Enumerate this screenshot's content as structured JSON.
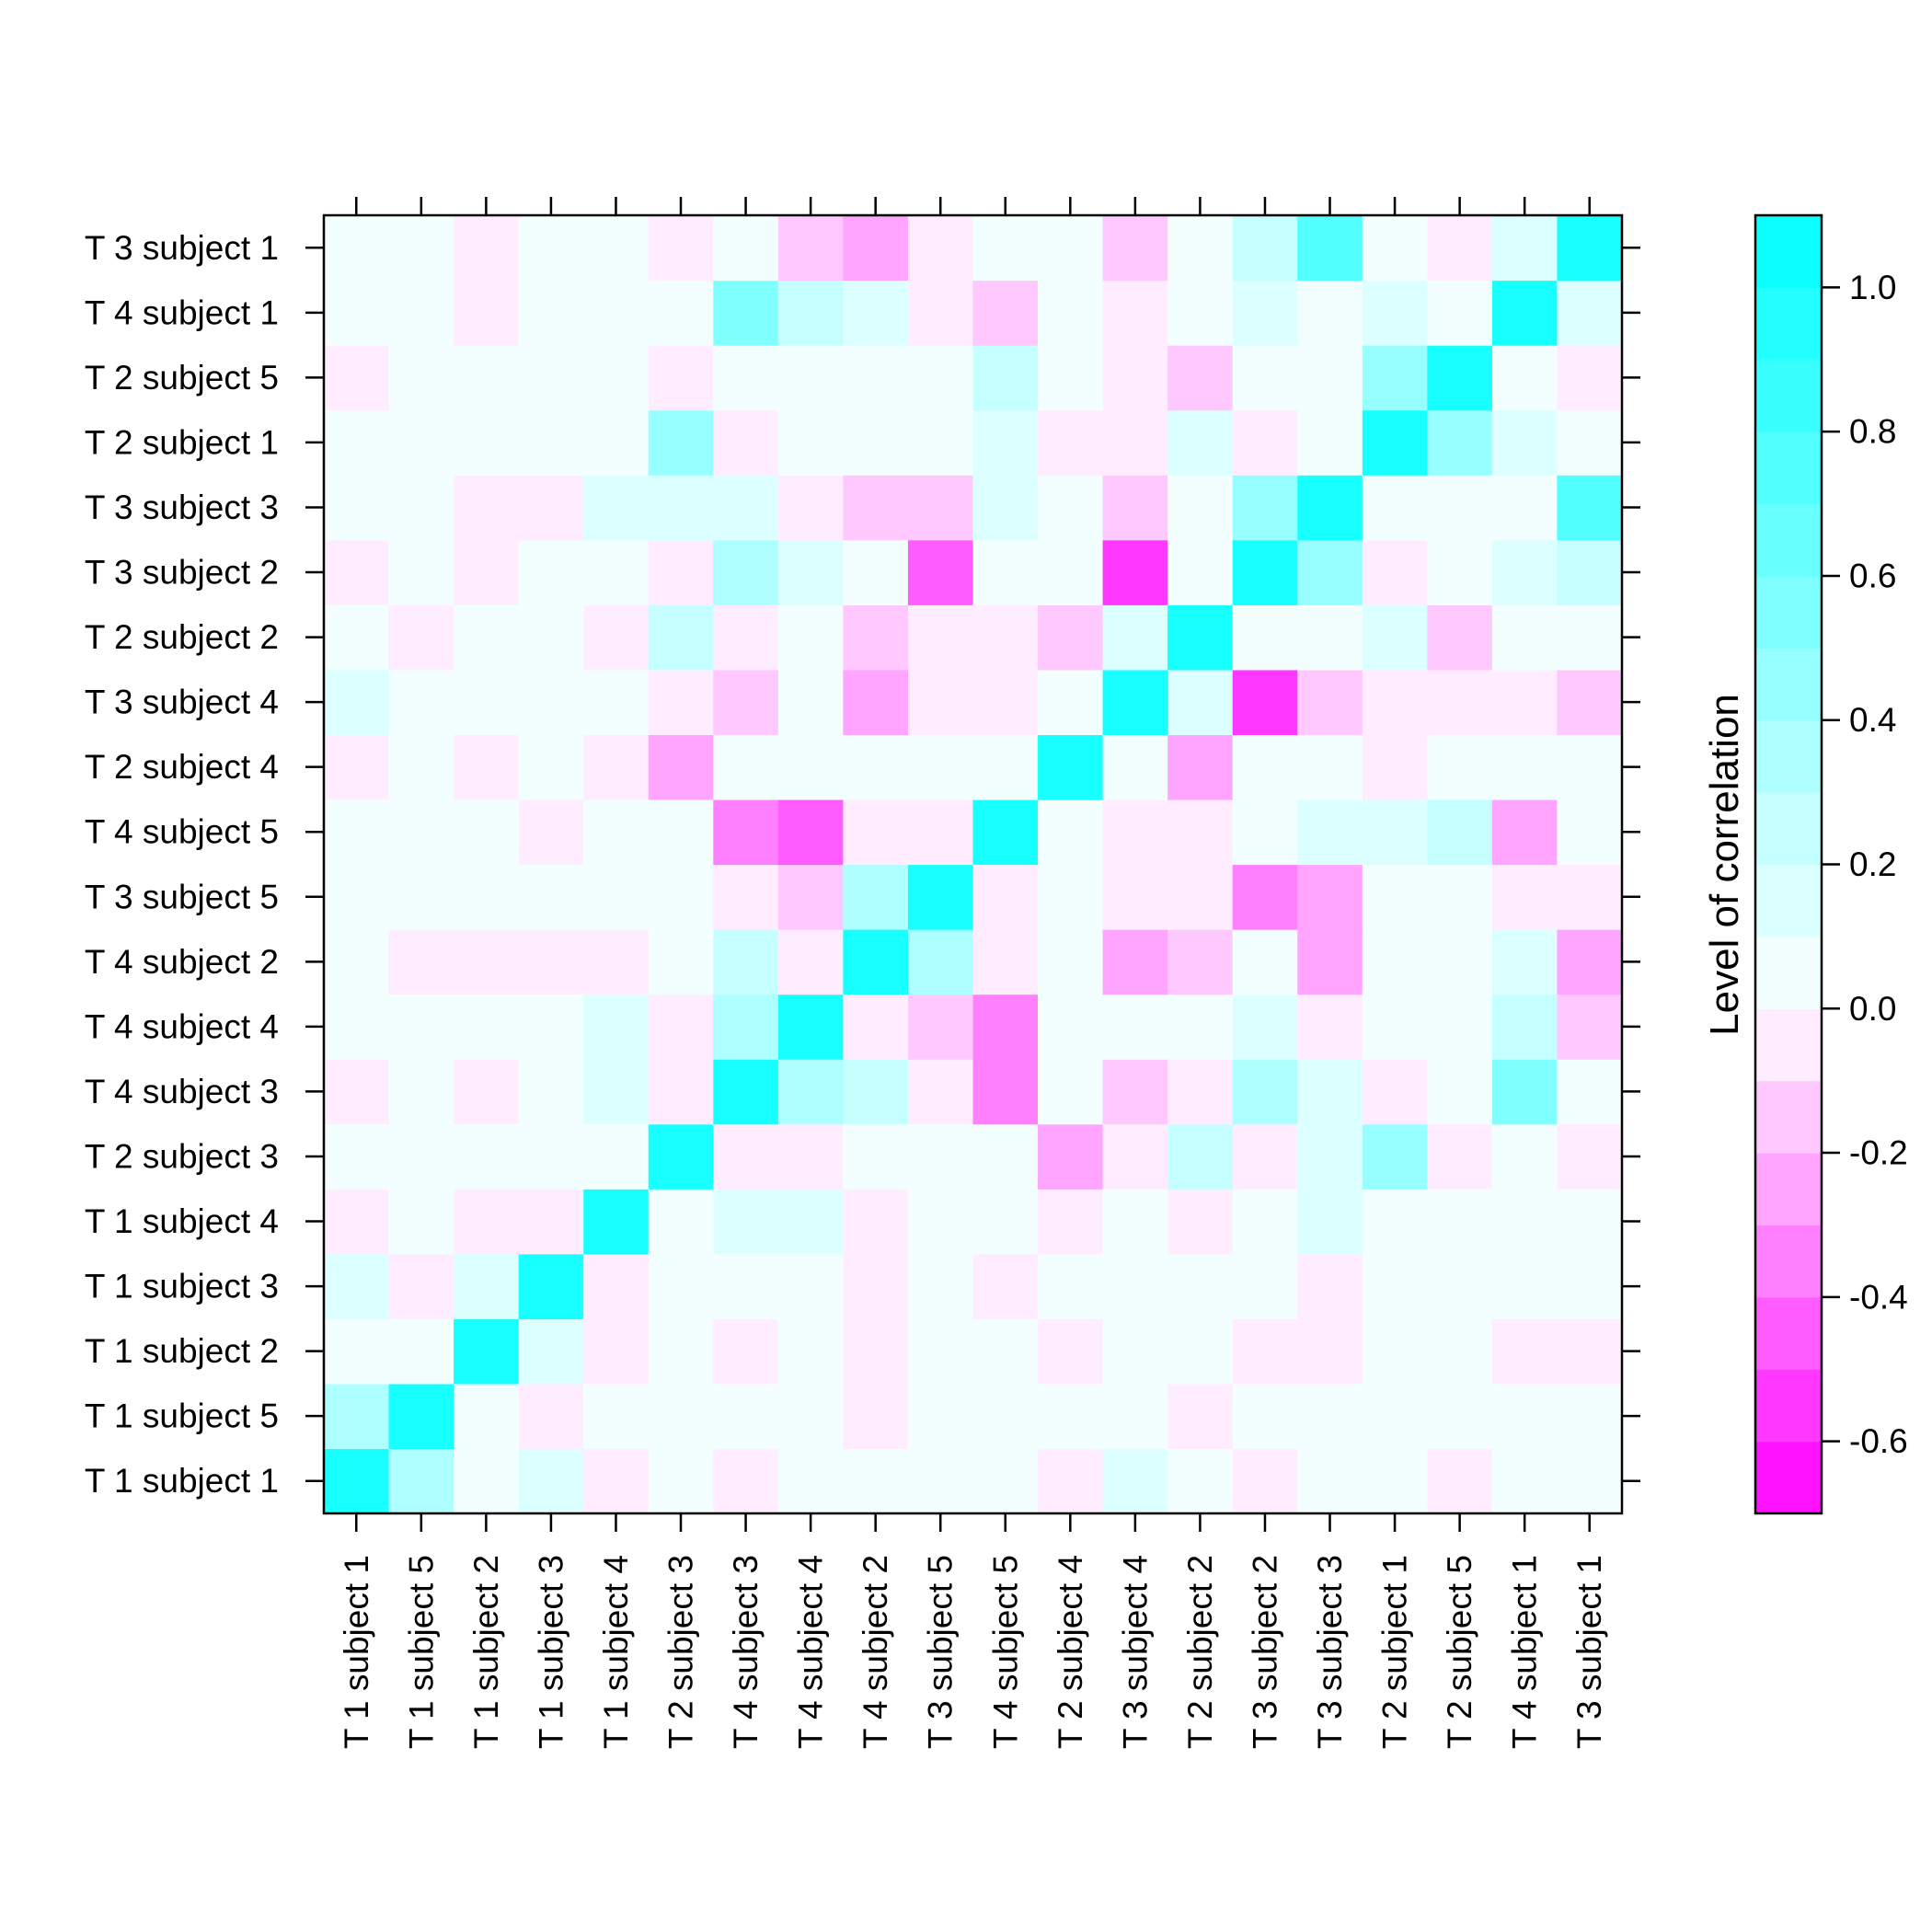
{
  "chart_data": {
    "type": "heatmap",
    "x_categories": [
      "T 1 subject 1",
      "T 1 subject 5",
      "T 1 subject 2",
      "T 1 subject 3",
      "T 1 subject 4",
      "T 2 subject 3",
      "T 4 subject 3",
      "T 4 subject 4",
      "T 4 subject 2",
      "T 3 subject 5",
      "T 4 subject 5",
      "T 2 subject 4",
      "T 3 subject 4",
      "T 2 subject 2",
      "T 3 subject 2",
      "T 3 subject 3",
      "T 2 subject 1",
      "T 2 subject 5",
      "T 4 subject 1",
      "T 3 subject 1"
    ],
    "y_categories": [
      "T 1 subject 1",
      "T 1 subject 5",
      "T 1 subject 2",
      "T 1 subject 3",
      "T 1 subject 4",
      "T 2 subject 3",
      "T 4 subject 3",
      "T 4 subject 4",
      "T 4 subject 2",
      "T 3 subject 5",
      "T 4 subject 5",
      "T 2 subject 4",
      "T 3 subject 4",
      "T 2 subject 2",
      "T 3 subject 2",
      "T 3 subject 3",
      "T 2 subject 1",
      "T 2 subject 5",
      "T 4 subject 1",
      "T 3 subject 1"
    ],
    "values": [
      [
        1.0,
        0.35,
        0.05,
        0.15,
        -0.05,
        0.05,
        -0.05,
        0.05,
        0.05,
        0.05,
        0.05,
        -0.05,
        0.15,
        0.05,
        -0.05,
        0.05,
        0.05,
        -0.05,
        0.05,
        0.05
      ],
      [
        0.35,
        1.0,
        0.05,
        -0.05,
        0.05,
        0.05,
        0.05,
        0.05,
        -0.05,
        0.05,
        0.05,
        0.05,
        0.05,
        -0.05,
        0.05,
        0.05,
        0.05,
        0.05,
        0.05,
        0.05
      ],
      [
        0.05,
        0.05,
        1.0,
        0.15,
        -0.05,
        0.05,
        -0.05,
        0.05,
        -0.05,
        0.05,
        0.05,
        -0.05,
        0.05,
        0.05,
        -0.05,
        -0.05,
        0.05,
        0.05,
        -0.05,
        -0.05
      ],
      [
        0.15,
        -0.05,
        0.15,
        1.0,
        -0.05,
        0.05,
        0.05,
        0.05,
        -0.05,
        0.05,
        -0.05,
        0.05,
        0.05,
        0.05,
        0.05,
        -0.05,
        0.05,
        0.05,
        0.05,
        0.05
      ],
      [
        -0.05,
        0.05,
        -0.05,
        -0.05,
        1.0,
        0.05,
        0.15,
        0.15,
        -0.05,
        0.05,
        0.05,
        -0.05,
        0.05,
        -0.05,
        0.05,
        0.15,
        0.05,
        0.05,
        0.05,
        0.05
      ],
      [
        0.05,
        0.05,
        0.05,
        0.05,
        0.05,
        1.0,
        -0.05,
        -0.05,
        0.05,
        0.05,
        0.05,
        -0.25,
        -0.05,
        0.25,
        -0.05,
        0.15,
        0.45,
        -0.05,
        0.05,
        -0.05
      ],
      [
        -0.05,
        0.05,
        -0.05,
        0.05,
        0.15,
        -0.05,
        1.0,
        0.35,
        0.25,
        -0.05,
        -0.35,
        0.05,
        -0.15,
        -0.05,
        0.35,
        0.15,
        -0.05,
        0.05,
        0.55,
        0.05
      ],
      [
        0.05,
        0.05,
        0.05,
        0.05,
        0.15,
        -0.05,
        0.35,
        1.0,
        -0.05,
        -0.15,
        -0.35,
        0.05,
        0.05,
        0.05,
        0.15,
        -0.05,
        0.05,
        0.05,
        0.25,
        -0.15
      ],
      [
        0.05,
        -0.05,
        -0.05,
        -0.05,
        -0.05,
        0.05,
        0.25,
        -0.05,
        1.0,
        0.35,
        -0.05,
        0.05,
        -0.25,
        -0.15,
        0.05,
        -0.25,
        0.05,
        0.05,
        0.15,
        -0.25
      ],
      [
        0.05,
        0.05,
        0.05,
        0.05,
        0.05,
        0.05,
        -0.05,
        -0.15,
        0.35,
        1.0,
        -0.05,
        0.05,
        -0.05,
        -0.05,
        -0.35,
        -0.25,
        0.05,
        0.05,
        -0.05,
        -0.05
      ],
      [
        0.05,
        0.05,
        0.05,
        -0.05,
        0.05,
        0.05,
        -0.35,
        -0.45,
        -0.05,
        -0.05,
        1.0,
        0.05,
        -0.05,
        -0.05,
        0.05,
        0.15,
        0.15,
        0.25,
        -0.25,
        0.05
      ],
      [
        -0.05,
        0.05,
        -0.05,
        0.05,
        -0.05,
        -0.25,
        0.05,
        0.05,
        0.05,
        0.05,
        0.05,
        1.0,
        0.05,
        -0.25,
        0.05,
        0.05,
        -0.05,
        0.05,
        0.05,
        0.05
      ],
      [
        0.15,
        0.05,
        0.05,
        0.05,
        0.05,
        -0.05,
        -0.15,
        0.05,
        -0.25,
        -0.05,
        -0.05,
        0.05,
        1.0,
        0.15,
        -0.55,
        -0.15,
        -0.05,
        -0.05,
        -0.05,
        -0.15
      ],
      [
        0.05,
        -0.05,
        0.05,
        0.05,
        -0.05,
        0.25,
        -0.05,
        0.05,
        -0.15,
        -0.05,
        -0.05,
        -0.15,
        0.15,
        1.0,
        0.05,
        0.05,
        0.15,
        -0.15,
        0.05,
        0.05
      ],
      [
        -0.05,
        0.05,
        -0.05,
        0.05,
        0.05,
        -0.05,
        0.35,
        0.15,
        0.05,
        -0.45,
        0.05,
        0.05,
        -0.55,
        0.05,
        1.0,
        0.45,
        -0.05,
        0.05,
        0.15,
        0.25
      ],
      [
        0.05,
        0.05,
        -0.05,
        -0.05,
        0.15,
        0.15,
        0.15,
        -0.05,
        -0.15,
        -0.15,
        0.15,
        0.05,
        -0.15,
        0.05,
        0.45,
        1.0,
        0.05,
        0.05,
        0.05,
        0.75
      ],
      [
        0.05,
        0.05,
        0.05,
        0.05,
        0.05,
        0.45,
        -0.05,
        0.05,
        0.05,
        0.05,
        0.15,
        -0.05,
        -0.05,
        0.15,
        -0.05,
        0.05,
        1.0,
        0.45,
        0.15,
        0.05
      ],
      [
        -0.05,
        0.05,
        0.05,
        0.05,
        0.05,
        -0.05,
        0.05,
        0.05,
        0.05,
        0.05,
        0.25,
        0.05,
        -0.05,
        -0.15,
        0.05,
        0.05,
        0.45,
        1.0,
        0.05,
        -0.05
      ],
      [
        0.05,
        0.05,
        -0.05,
        0.05,
        0.05,
        0.05,
        0.55,
        0.25,
        0.15,
        -0.05,
        -0.15,
        0.05,
        -0.05,
        0.05,
        0.15,
        0.05,
        0.15,
        0.05,
        1.0,
        0.15
      ],
      [
        0.05,
        0.05,
        -0.05,
        0.05,
        0.05,
        -0.05,
        0.05,
        -0.15,
        -0.25,
        -0.05,
        0.05,
        0.05,
        -0.15,
        0.05,
        0.25,
        0.75,
        0.05,
        -0.05,
        0.15,
        1.0
      ]
    ],
    "colorbar": {
      "label": "Level of correlation",
      "min": -0.7,
      "max": 1.1,
      "ticks": [
        -0.6,
        -0.4,
        -0.2,
        0.0,
        0.2,
        0.4,
        0.6,
        0.8,
        1.0
      ],
      "tick_labels": [
        "-0.6",
        "-0.4",
        "-0.2",
        "0.0",
        "0.2",
        "0.4",
        "0.6",
        "0.8",
        "1.0"
      ],
      "low_color": "#ff00ff",
      "high_color": "#00ffff"
    },
    "title": "",
    "xlabel": "",
    "ylabel": ""
  }
}
